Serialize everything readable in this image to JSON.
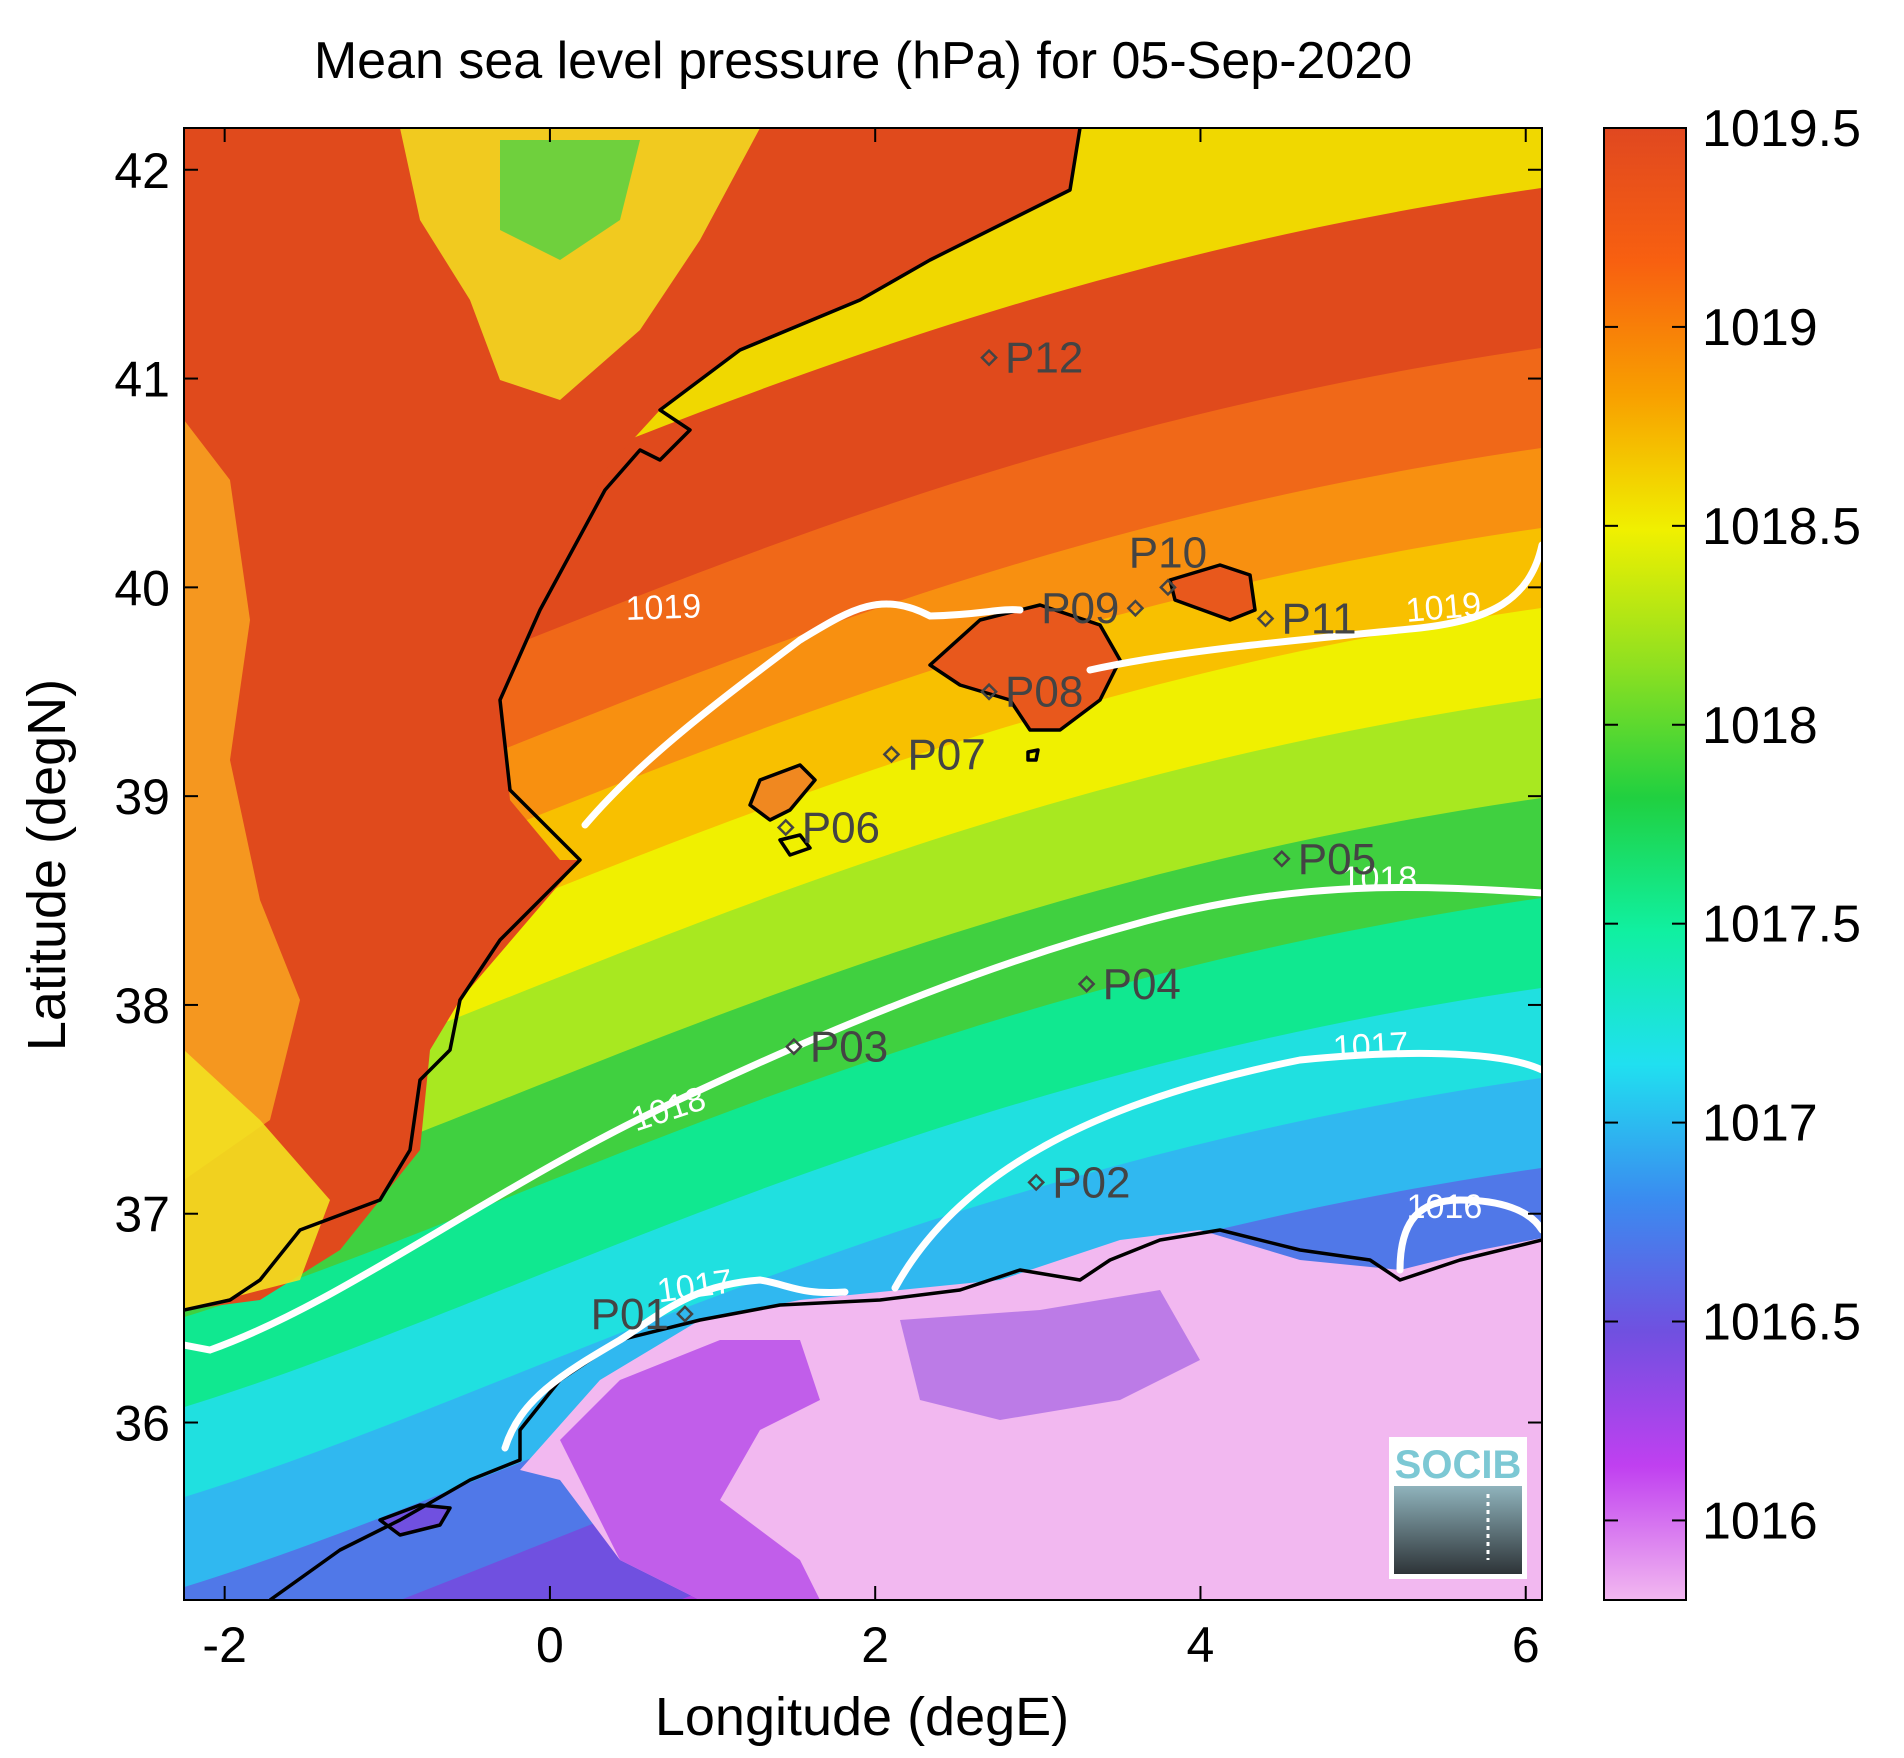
{
  "title": "Mean sea level pressure (hPa) for 05-Sep-2020",
  "xlabel": "Longitude (degE)",
  "ylabel": "Latitude (degN)",
  "map": {
    "lon_range": [
      -2.25,
      6.1
    ],
    "lat_range": [
      35.15,
      42.2
    ],
    "x_ticks": [
      -2,
      0,
      2,
      4,
      6
    ],
    "y_ticks": [
      36,
      37,
      38,
      39,
      40,
      41,
      42
    ],
    "x_tick_labels": [
      "-2",
      "0",
      "2",
      "4",
      "6"
    ],
    "y_tick_labels": [
      "36",
      "37",
      "38",
      "39",
      "40",
      "41",
      "42"
    ]
  },
  "colorbar": {
    "range": [
      1015.8,
      1019.5
    ],
    "ticks": [
      1016,
      1016.5,
      1017,
      1017.5,
      1018,
      1018.5,
      1019,
      1019.5
    ],
    "tick_labels": [
      "1016",
      "1016.5",
      "1017",
      "1017.5",
      "1018",
      "1018.5",
      "1019",
      "1019.5"
    ],
    "colors": [
      "#f2b8f0",
      "#c040f0",
      "#7050e0",
      "#3a8cf0",
      "#20e0f0",
      "#10f0a0",
      "#20d040",
      "#90e020",
      "#f0f000",
      "#f8a000",
      "#f86010",
      "#e04820"
    ]
  },
  "stations": [
    {
      "name": "P01",
      "lon": 0.83,
      "lat": 36.52,
      "label_side": "left"
    },
    {
      "name": "P02",
      "lon": 2.99,
      "lat": 37.15,
      "label_side": "right"
    },
    {
      "name": "P03",
      "lon": 1.5,
      "lat": 37.8,
      "label_side": "right"
    },
    {
      "name": "P04",
      "lon": 3.3,
      "lat": 38.1,
      "label_side": "right"
    },
    {
      "name": "P05",
      "lon": 4.5,
      "lat": 38.7,
      "label_side": "right"
    },
    {
      "name": "P06",
      "lon": 1.45,
      "lat": 38.85,
      "label_side": "right"
    },
    {
      "name": "P07",
      "lon": 2.1,
      "lat": 39.2,
      "label_side": "right"
    },
    {
      "name": "P08",
      "lon": 2.7,
      "lat": 39.5,
      "label_side": "right"
    },
    {
      "name": "P09",
      "lon": 3.6,
      "lat": 39.9,
      "label_side": "left"
    },
    {
      "name": "P10",
      "lon": 3.8,
      "lat": 40.0,
      "label_side": "above"
    },
    {
      "name": "P11",
      "lon": 4.4,
      "lat": 39.85,
      "label_side": "right"
    },
    {
      "name": "P12",
      "lon": 2.7,
      "lat": 41.1,
      "label_side": "right"
    }
  ],
  "contour_labels": [
    {
      "text": "1019",
      "lon": 0.7,
      "lat": 39.85,
      "rotate": -2
    },
    {
      "text": "1019",
      "lon": 5.5,
      "lat": 39.85,
      "rotate": -5
    },
    {
      "text": "1018",
      "lon": 5.1,
      "lat": 38.55,
      "rotate": 0
    },
    {
      "text": "1018",
      "lon": 0.75,
      "lat": 37.45,
      "rotate": -18
    },
    {
      "text": "1017",
      "lon": 5.05,
      "lat": 37.75,
      "rotate": -3
    },
    {
      "text": "1017",
      "lon": 0.9,
      "lat": 36.6,
      "rotate": -8
    },
    {
      "text": "1016",
      "lon": 5.5,
      "lat": 36.98,
      "rotate": 0
    }
  ],
  "logo": {
    "text": "SOCIB"
  }
}
